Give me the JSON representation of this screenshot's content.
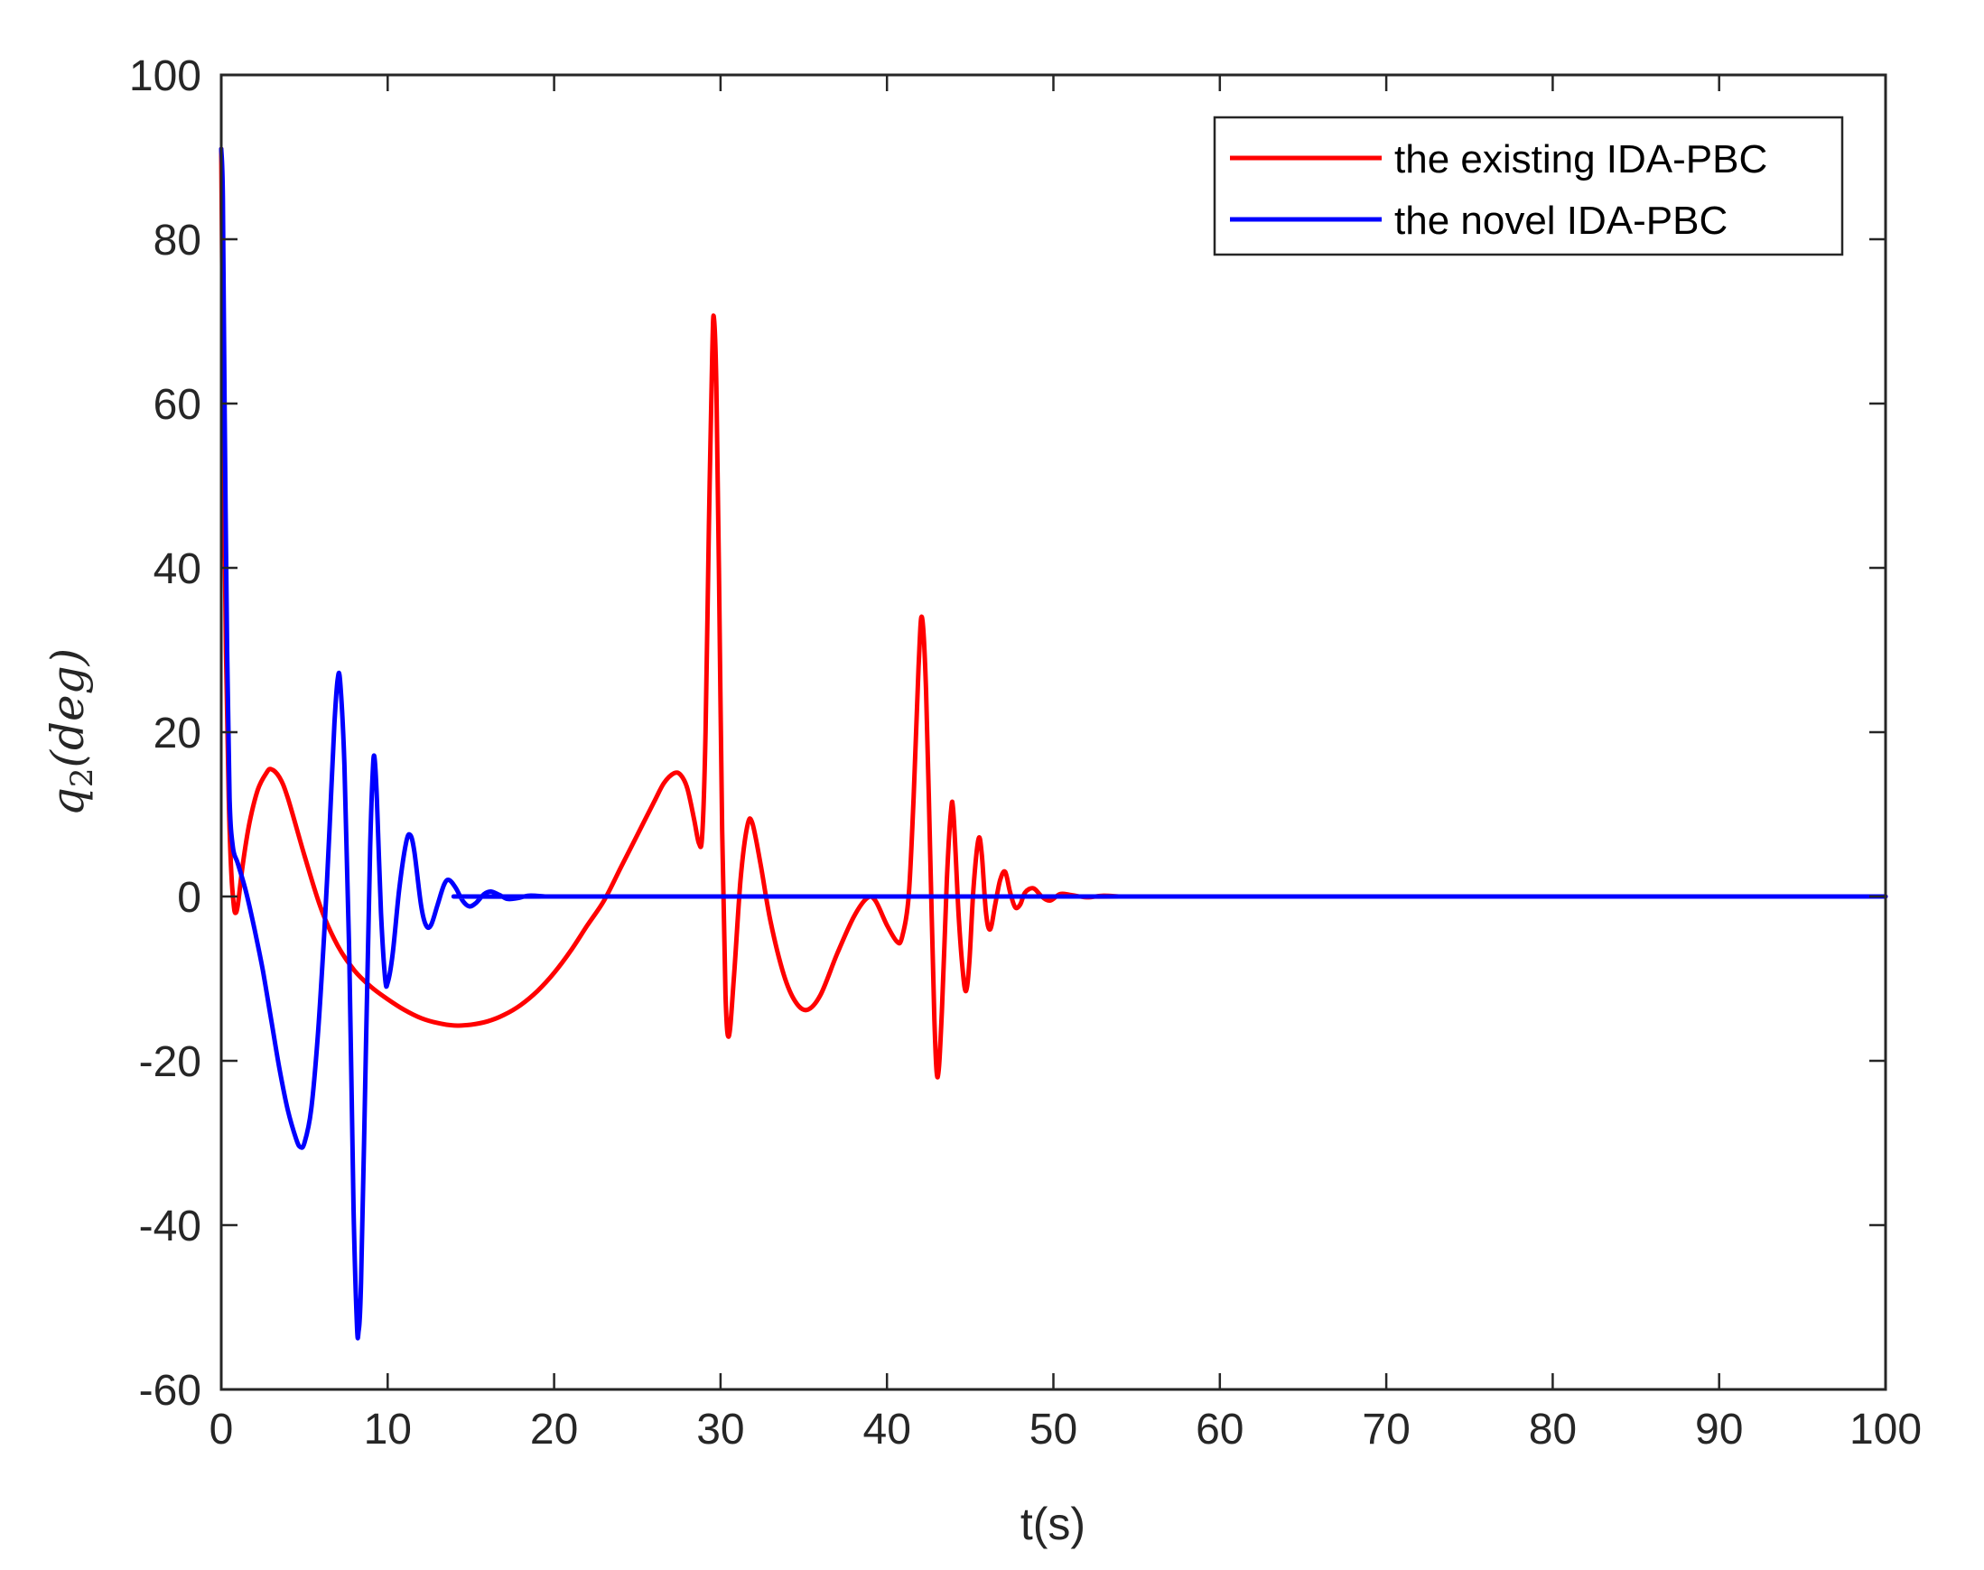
{
  "chart_data": {
    "type": "line",
    "title": "",
    "xlabel": "t(s)",
    "ylabel_main": "q",
    "ylabel_sub": "2",
    "ylabel_rest": "(deg)",
    "xlim": [
      0,
      100
    ],
    "ylim": [
      -60,
      100
    ],
    "xticks": [
      0,
      10,
      20,
      30,
      40,
      50,
      60,
      70,
      80,
      90,
      100
    ],
    "yticks": [
      -60,
      -40,
      -20,
      0,
      20,
      40,
      60,
      80,
      100
    ],
    "grid": false,
    "legend_position": "top-right",
    "series": [
      {
        "name": "the existing IDA-PBC",
        "color": "#ff0000",
        "points": [
          [
            0.0,
            91.0
          ],
          [
            0.12,
            60.0
          ],
          [
            0.28,
            30.0
          ],
          [
            0.45,
            12.0
          ],
          [
            0.6,
            3.0
          ],
          [
            0.75,
            -1.0
          ],
          [
            0.85,
            -2.0
          ],
          [
            1.0,
            -1.0
          ],
          [
            1.3,
            4.0
          ],
          [
            1.7,
            9.0
          ],
          [
            2.2,
            13.0
          ],
          [
            2.7,
            15.0
          ],
          [
            3.0,
            15.5
          ],
          [
            3.5,
            14.5
          ],
          [
            4.0,
            12.0
          ],
          [
            5.0,
            5.0
          ],
          [
            6.0,
            -1.5
          ],
          [
            7.0,
            -6.0
          ],
          [
            8.0,
            -9.0
          ],
          [
            9.0,
            -11.0
          ],
          [
            10.0,
            -12.5
          ],
          [
            11.0,
            -13.8
          ],
          [
            12.0,
            -14.8
          ],
          [
            13.0,
            -15.4
          ],
          [
            14.0,
            -15.7
          ],
          [
            15.0,
            -15.6
          ],
          [
            16.0,
            -15.2
          ],
          [
            17.0,
            -14.4
          ],
          [
            18.0,
            -13.2
          ],
          [
            19.0,
            -11.5
          ],
          [
            20.0,
            -9.3
          ],
          [
            21.0,
            -6.6
          ],
          [
            22.0,
            -3.5
          ],
          [
            23.0,
            -0.5
          ],
          [
            24.0,
            3.5
          ],
          [
            25.0,
            7.5
          ],
          [
            26.0,
            11.5
          ],
          [
            26.6,
            13.8
          ],
          [
            27.2,
            15.0
          ],
          [
            27.6,
            14.8
          ],
          [
            28.0,
            13.2
          ],
          [
            28.4,
            9.5
          ],
          [
            28.7,
            6.5
          ],
          [
            28.9,
            7.5
          ],
          [
            29.1,
            20.0
          ],
          [
            29.3,
            45.0
          ],
          [
            29.5,
            66.0
          ],
          [
            29.6,
            70.5
          ],
          [
            29.75,
            62.0
          ],
          [
            29.9,
            40.0
          ],
          [
            30.1,
            8.0
          ],
          [
            30.3,
            -12.0
          ],
          [
            30.5,
            -17.0
          ],
          [
            30.8,
            -10.0
          ],
          [
            31.2,
            2.0
          ],
          [
            31.6,
            8.5
          ],
          [
            31.9,
            9.0
          ],
          [
            32.4,
            4.0
          ],
          [
            33.0,
            -3.0
          ],
          [
            33.8,
            -9.5
          ],
          [
            34.5,
            -12.8
          ],
          [
            35.2,
            -13.8
          ],
          [
            36.0,
            -12.0
          ],
          [
            37.0,
            -7.0
          ],
          [
            38.0,
            -2.5
          ],
          [
            38.8,
            -0.2
          ],
          [
            39.3,
            -0.5
          ],
          [
            40.0,
            -3.5
          ],
          [
            40.6,
            -5.5
          ],
          [
            40.9,
            -5.0
          ],
          [
            41.3,
            0.0
          ],
          [
            41.6,
            12.0
          ],
          [
            41.9,
            28.0
          ],
          [
            42.1,
            34.0
          ],
          [
            42.35,
            25.0
          ],
          [
            42.6,
            5.0
          ],
          [
            42.85,
            -15.0
          ],
          [
            43.05,
            -22.0
          ],
          [
            43.3,
            -14.0
          ],
          [
            43.6,
            2.0
          ],
          [
            43.85,
            10.5
          ],
          [
            44.0,
            10.0
          ],
          [
            44.3,
            -2.0
          ],
          [
            44.55,
            -9.0
          ],
          [
            44.75,
            -11.5
          ],
          [
            44.95,
            -8.0
          ],
          [
            45.2,
            1.0
          ],
          [
            45.5,
            7.0
          ],
          [
            45.7,
            5.0
          ],
          [
            45.95,
            -2.0
          ],
          [
            46.2,
            -4.0
          ],
          [
            46.5,
            -1.0
          ],
          [
            46.8,
            2.0
          ],
          [
            47.1,
            3.0
          ],
          [
            47.4,
            0.5
          ],
          [
            47.7,
            -1.3
          ],
          [
            48.0,
            -1.0
          ],
          [
            48.3,
            0.5
          ],
          [
            48.8,
            1.0
          ],
          [
            49.3,
            0.0
          ],
          [
            49.8,
            -0.5
          ],
          [
            50.4,
            0.3
          ],
          [
            51.0,
            0.2
          ],
          [
            52.0,
            -0.1
          ],
          [
            53.0,
            0.1
          ],
          [
            54.0,
            0.0
          ],
          [
            55.0,
            0.0
          ],
          [
            100.0,
            0.0
          ]
        ]
      },
      {
        "name": "the novel IDA-PBC",
        "color": "#0000ff",
        "points": [
          [
            0.0,
            91.0
          ],
          [
            0.1,
            85.0
          ],
          [
            0.2,
            60.0
          ],
          [
            0.35,
            30.0
          ],
          [
            0.5,
            12.0
          ],
          [
            0.7,
            6.0
          ],
          [
            1.0,
            4.0
          ],
          [
            1.5,
            0.5
          ],
          [
            2.0,
            -4.0
          ],
          [
            2.5,
            -9.0
          ],
          [
            3.0,
            -15.0
          ],
          [
            3.5,
            -21.0
          ],
          [
            4.0,
            -26.0
          ],
          [
            4.5,
            -29.5
          ],
          [
            4.75,
            -30.5
          ],
          [
            5.0,
            -30.0
          ],
          [
            5.4,
            -26.0
          ],
          [
            5.8,
            -17.0
          ],
          [
            6.2,
            -4.0
          ],
          [
            6.5,
            8.0
          ],
          [
            6.8,
            21.0
          ],
          [
            7.0,
            26.5
          ],
          [
            7.15,
            26.0
          ],
          [
            7.4,
            16.0
          ],
          [
            7.7,
            -8.0
          ],
          [
            7.95,
            -38.0
          ],
          [
            8.15,
            -52.0
          ],
          [
            8.25,
            -53.0
          ],
          [
            8.4,
            -47.0
          ],
          [
            8.7,
            -18.0
          ],
          [
            8.95,
            6.0
          ],
          [
            9.1,
            15.0
          ],
          [
            9.2,
            17.0
          ],
          [
            9.35,
            12.0
          ],
          [
            9.6,
            -2.0
          ],
          [
            9.85,
            -10.0
          ],
          [
            10.0,
            -10.5
          ],
          [
            10.3,
            -7.0
          ],
          [
            10.7,
            1.0
          ],
          [
            11.1,
            6.5
          ],
          [
            11.35,
            7.5
          ],
          [
            11.6,
            5.5
          ],
          [
            12.0,
            -1.0
          ],
          [
            12.3,
            -3.5
          ],
          [
            12.6,
            -3.5
          ],
          [
            13.0,
            -1.0
          ],
          [
            13.4,
            1.5
          ],
          [
            13.7,
            2.0
          ],
          [
            14.1,
            1.0
          ],
          [
            14.5,
            -0.5
          ],
          [
            14.9,
            -1.2
          ],
          [
            15.3,
            -0.8
          ],
          [
            15.8,
            0.3
          ],
          [
            16.2,
            0.6
          ],
          [
            16.7,
            0.2
          ],
          [
            17.2,
            -0.3
          ],
          [
            17.8,
            -0.2
          ],
          [
            18.5,
            0.1
          ],
          [
            19.5,
            0.0
          ],
          [
            20.0,
            0.0
          ],
          [
            100.0,
            0.0
          ]
        ]
      }
    ]
  }
}
